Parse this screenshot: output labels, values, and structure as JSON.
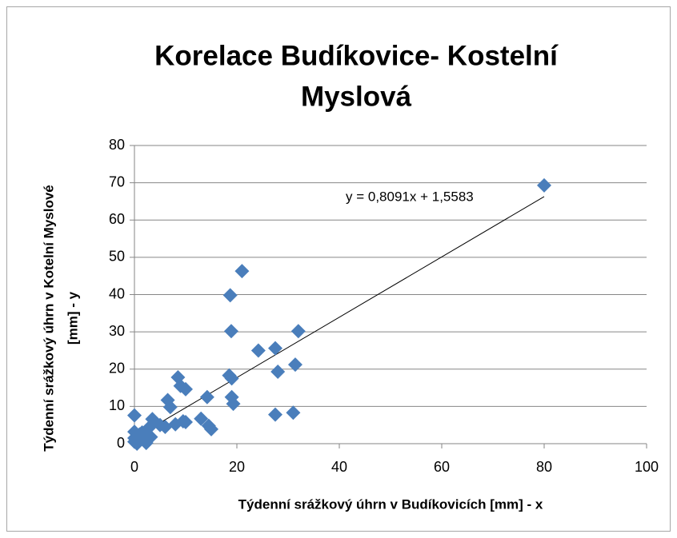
{
  "chart_data": {
    "type": "scatter",
    "title": [
      "Korelace Budíkovice- Kostelní",
      "Myslová"
    ],
    "xlabel": "Týdenní srážkový úhrn v Budíkovicích [mm] - x",
    "ylabel": [
      "Týdenní srážkový úhrn v Kotelní Myslové",
      "[mm] - y"
    ],
    "color": "#4a7ebb",
    "x": [
      80,
      21,
      18.7,
      18.9,
      32,
      24.2,
      27.5,
      31.4,
      28,
      18.5,
      19,
      8.5,
      9,
      10,
      6.5,
      7,
      19,
      19.3,
      14.2,
      27.5,
      31,
      0,
      3.5,
      13,
      14.5,
      15,
      10,
      9.5,
      8,
      6,
      5,
      3,
      2.5,
      2,
      2.3,
      1,
      0,
      0,
      0,
      0.5,
      1.5,
      3.2
    ],
    "values": [
      69.3,
      46.3,
      39.8,
      30.2,
      30.2,
      25,
      25.6,
      21.2,
      19.3,
      18.3,
      17.5,
      17.8,
      15.5,
      14.6,
      11.7,
      9.8,
      12.5,
      10.7,
      12.5,
      7.8,
      8.3,
      7.6,
      6.6,
      6.7,
      4.8,
      3.9,
      5.8,
      6,
      5.2,
      4.5,
      5,
      4.5,
      2,
      1,
      0.2,
      2.5,
      3.2,
      1.5,
      0.5,
      0,
      3,
      1.8
    ],
    "trendline": {
      "slope": 0.8091,
      "intercept": 1.5583,
      "label": "y = 0,8091x + 1,5583"
    },
    "xlim": [
      0,
      100
    ],
    "xticks": [
      0,
      20,
      40,
      60,
      80,
      100
    ],
    "ylim": [
      0,
      80
    ],
    "yticks": [
      0,
      10,
      20,
      30,
      40,
      50,
      60,
      70,
      80
    ],
    "grid": true
  }
}
